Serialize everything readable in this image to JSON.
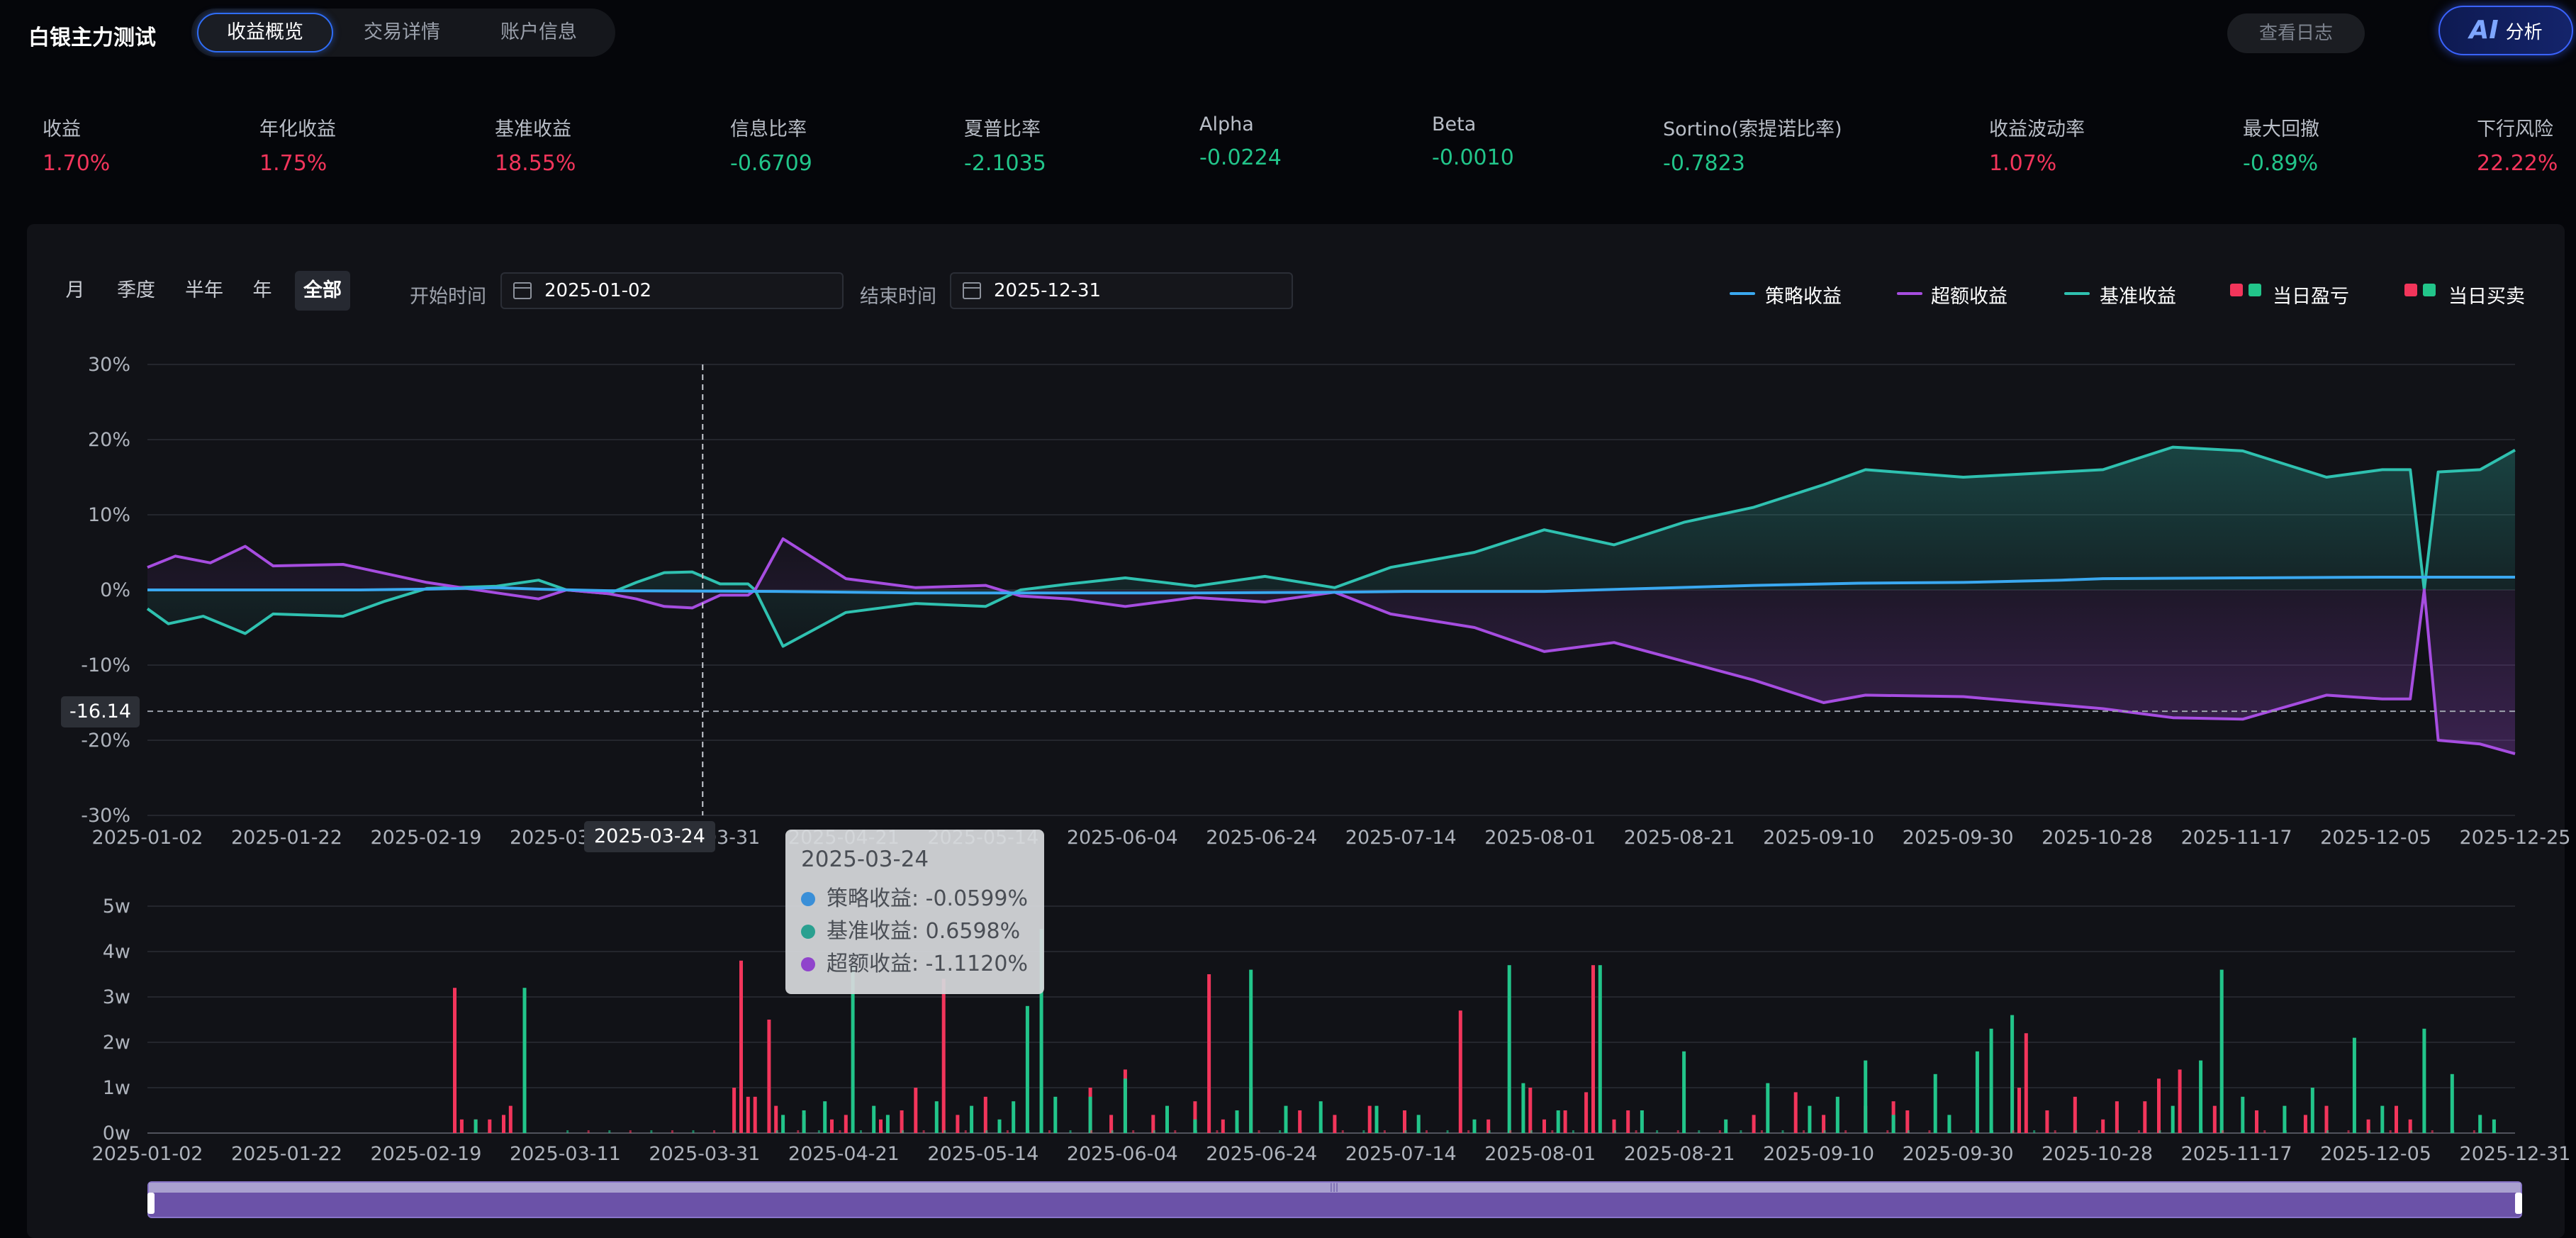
{
  "app": {
    "title": "白银主力测试"
  },
  "tabs": [
    {
      "label": "收益概览",
      "active": true
    },
    {
      "label": "交易详情",
      "active": false
    },
    {
      "label": "账户信息",
      "active": false
    }
  ],
  "header": {
    "log_button": "查看日志",
    "ai_mark": "AI",
    "ai_label": "分析"
  },
  "metrics": [
    {
      "label": "收益",
      "value": "1.70%",
      "tone": "red"
    },
    {
      "label": "年化收益",
      "value": "1.75%",
      "tone": "red"
    },
    {
      "label": "基准收益",
      "value": "18.55%",
      "tone": "red"
    },
    {
      "label": "信息比率",
      "value": "-0.6709",
      "tone": "green"
    },
    {
      "label": "夏普比率",
      "value": "-2.1035",
      "tone": "green"
    },
    {
      "label": "Alpha",
      "value": "-0.0224",
      "tone": "green"
    },
    {
      "label": "Beta",
      "value": "-0.0010",
      "tone": "green"
    },
    {
      "label": "Sortino(索提诺比率)",
      "value": "-0.7823",
      "tone": "green"
    },
    {
      "label": "收益波动率",
      "value": "1.07%",
      "tone": "red"
    },
    {
      "label": "最大回撤",
      "value": "-0.89%",
      "tone": "green"
    },
    {
      "label": "下行风险",
      "value": "22.22%",
      "tone": "red"
    }
  ],
  "filters": {
    "periods": [
      "月",
      "季度",
      "半年",
      "年",
      "全部"
    ],
    "active_period": "全部",
    "start_label": "开始时间",
    "start_value": "2025-01-02",
    "end_label": "结束时间",
    "end_value": "2025-12-31"
  },
  "legend": [
    {
      "label": "策略收益",
      "kind": "line",
      "color": "#3aa8f0"
    },
    {
      "label": "超额收益",
      "kind": "line",
      "color": "#a64de0"
    },
    {
      "label": "基准收益",
      "kind": "line",
      "color": "#2fc1b0"
    },
    {
      "label": "当日盈亏",
      "kind": "squares",
      "colors": [
        "#f2355b",
        "#22c58a"
      ]
    },
    {
      "label": "当日买卖",
      "kind": "squares",
      "colors": [
        "#f2355b",
        "#22c58a"
      ]
    }
  ],
  "crosshair": {
    "date": "2025-03-24",
    "y_value": "-16.14"
  },
  "tooltip": {
    "date": "2025-03-24",
    "rows": [
      {
        "text": "策略收益: -0.0599%",
        "color": "#3a8fd8"
      },
      {
        "text": "基准收益: 0.6598%",
        "color": "#2aa090"
      },
      {
        "text": "超额收益: -1.1120%",
        "color": "#9044cc"
      }
    ]
  },
  "chart_data": [
    {
      "type": "line",
      "y_ticks": [
        "30%",
        "20%",
        "10%",
        "0%",
        "-10%",
        "-20%",
        "-30%"
      ],
      "ylim": [
        -30,
        30
      ],
      "x_ticks": [
        "2025-01-02",
        "2025-01-22",
        "2025-02-19",
        "2025-03-11",
        "2025-03-31",
        "2025-04-21",
        "2025-05-14",
        "2025-06-04",
        "2025-06-24",
        "2025-07-14",
        "2025-08-01",
        "2025-08-21",
        "2025-09-10",
        "2025-09-30",
        "2025-10-28",
        "2025-11-17",
        "2025-12-05",
        "2025-12-25"
      ],
      "series": [
        {
          "name": "策略收益",
          "color": "#3aa8f0",
          "points": [
            [
              0,
              0
            ],
            [
              30,
              0
            ],
            [
              40,
              0.1
            ],
            [
              50,
              0.3
            ],
            [
              56,
              0.1
            ],
            [
              66,
              -0.1
            ],
            [
              90,
              -0.2
            ],
            [
              110,
              -0.4
            ],
            [
              130,
              -0.4
            ],
            [
              150,
              -0.4
            ],
            [
              170,
              -0.3
            ],
            [
              180,
              -0.2
            ],
            [
              200,
              -0.2
            ],
            [
              215,
              0.2
            ],
            [
              230,
              0.6
            ],
            [
              245,
              0.9
            ],
            [
              260,
              1.0
            ],
            [
              274,
              1.3
            ],
            [
              280,
              1.5
            ],
            [
              300,
              1.6
            ],
            [
              320,
              1.7
            ],
            [
              339,
              1.7
            ]
          ]
        },
        {
          "name": "基准收益",
          "color": "#2fc1b0",
          "points": [
            [
              0,
              -2.5
            ],
            [
              3,
              -4.5
            ],
            [
              8,
              -3.5
            ],
            [
              14,
              -5.8
            ],
            [
              18,
              -3.2
            ],
            [
              28,
              -3.5
            ],
            [
              34,
              -1.5
            ],
            [
              40,
              0.2
            ],
            [
              50,
              0.5
            ],
            [
              56,
              1.3
            ],
            [
              60,
              0
            ],
            [
              66,
              -0.5
            ],
            [
              70,
              1
            ],
            [
              74,
              2.3
            ],
            [
              78,
              2.4
            ],
            [
              82,
              0.8
            ],
            [
              86,
              0.8
            ],
            [
              87,
              0
            ],
            [
              91,
              -7.5
            ],
            [
              100,
              -3
            ],
            [
              110,
              -1.8
            ],
            [
              120,
              -2.2
            ],
            [
              125,
              0
            ],
            [
              132,
              0.8
            ],
            [
              140,
              1.6
            ],
            [
              150,
              0.5
            ],
            [
              160,
              1.8
            ],
            [
              170,
              0.3
            ],
            [
              178,
              3
            ],
            [
              190,
              5
            ],
            [
              200,
              8
            ],
            [
              210,
              6
            ],
            [
              220,
              9
            ],
            [
              230,
              11
            ],
            [
              240,
              14
            ],
            [
              246,
              16
            ],
            [
              260,
              15
            ],
            [
              270,
              15.5
            ],
            [
              280,
              16
            ],
            [
              290,
              19
            ],
            [
              300,
              18.5
            ],
            [
              312,
              15
            ],
            [
              320,
              16
            ],
            [
              324,
              16
            ],
            [
              326,
              0
            ],
            [
              328,
              15.7
            ],
            [
              334,
              16
            ],
            [
              339,
              18.6
            ]
          ]
        },
        {
          "name": "超额收益",
          "color": "#a64de0",
          "points": [
            [
              0,
              3
            ],
            [
              4,
              4.5
            ],
            [
              9,
              3.6
            ],
            [
              14,
              5.8
            ],
            [
              18,
              3.2
            ],
            [
              28,
              3.4
            ],
            [
              32,
              2.6
            ],
            [
              40,
              1
            ],
            [
              50,
              -0.4
            ],
            [
              56,
              -1.2
            ],
            [
              60,
              0
            ],
            [
              66,
              -0.5
            ],
            [
              70,
              -1.2
            ],
            [
              74,
              -2.2
            ],
            [
              78,
              -2.4
            ],
            [
              82,
              -0.7
            ],
            [
              86,
              -0.7
            ],
            [
              87,
              0
            ],
            [
              91,
              6.8
            ],
            [
              100,
              1.5
            ],
            [
              110,
              0.3
            ],
            [
              120,
              0.6
            ],
            [
              125,
              -0.8
            ],
            [
              132,
              -1.2
            ],
            [
              140,
              -2.2
            ],
            [
              150,
              -1
            ],
            [
              160,
              -1.6
            ],
            [
              170,
              -0.3
            ],
            [
              178,
              -3.2
            ],
            [
              190,
              -5
            ],
            [
              200,
              -8.2
            ],
            [
              210,
              -7
            ],
            [
              220,
              -9.5
            ],
            [
              230,
              -12
            ],
            [
              240,
              -15
            ],
            [
              246,
              -14
            ],
            [
              260,
              -14.2
            ],
            [
              270,
              -15
            ],
            [
              280,
              -15.8
            ],
            [
              290,
              -17
            ],
            [
              300,
              -17.2
            ],
            [
              312,
              -14
            ],
            [
              320,
              -14.5
            ],
            [
              324,
              -14.5
            ],
            [
              326,
              0
            ],
            [
              328,
              -20
            ],
            [
              334,
              -20.5
            ],
            [
              339,
              -21.8
            ]
          ]
        }
      ],
      "x_range": [
        0,
        339
      ]
    },
    {
      "type": "bar",
      "y_ticks": [
        "5w",
        "4w",
        "3w",
        "2w",
        "1w",
        "0w"
      ],
      "ylim": [
        0,
        5
      ],
      "x_ticks": [
        "2025-01-02",
        "2025-01-22",
        "2025-02-19",
        "2025-03-11",
        "2025-03-31",
        "2025-04-21",
        "2025-05-14",
        "2025-06-04",
        "2025-06-24",
        "2025-07-14",
        "2025-08-01",
        "2025-08-21",
        "2025-09-10",
        "2025-09-30",
        "2025-10-28",
        "2025-11-17",
        "2025-12-05",
        "2025-12-31"
      ],
      "x_range": [
        0,
        339
      ],
      "series": [
        {
          "name": "当日盈亏",
          "color": "#f2355b",
          "bars": [
            [
              44,
              3.2
            ],
            [
              45,
              0.3
            ],
            [
              47,
              0.3
            ],
            [
              49,
              0.3
            ],
            [
              51,
              0.4
            ],
            [
              52,
              0.6
            ],
            [
              84,
              1
            ],
            [
              85,
              3.8
            ],
            [
              86,
              0.8
            ],
            [
              87,
              0.8
            ],
            [
              89,
              2.5
            ],
            [
              90,
              0.6
            ],
            [
              94,
              0.4
            ],
            [
              98,
              0.3
            ],
            [
              100,
              0.4
            ],
            [
              105,
              0.3
            ],
            [
              108,
              0.5
            ],
            [
              110,
              1
            ],
            [
              114,
              3.4
            ],
            [
              116,
              0.4
            ],
            [
              120,
              0.8
            ],
            [
              135,
              1
            ],
            [
              138,
              0.4
            ],
            [
              140,
              1.4
            ],
            [
              144,
              0.4
            ],
            [
              150,
              0.7
            ],
            [
              152,
              3.5
            ],
            [
              154,
              0.3
            ],
            [
              158,
              1
            ],
            [
              165,
              0.5
            ],
            [
              170,
              0.4
            ],
            [
              175,
              0.6
            ],
            [
              180,
              0.5
            ],
            [
              188,
              2.7
            ],
            [
              192,
              0.3
            ],
            [
              198,
              1.0
            ],
            [
              200,
              0.3
            ],
            [
              203,
              0.5
            ],
            [
              206,
              0.9
            ],
            [
              207,
              3.7
            ],
            [
              210,
              0.3
            ],
            [
              212,
              0.5
            ],
            [
              230,
              0.4
            ],
            [
              236,
              0.9
            ],
            [
              240,
              0.4
            ],
            [
              246,
              0.6
            ],
            [
              250,
              0.7
            ],
            [
              252,
              0.5
            ],
            [
              268,
              1.0
            ],
            [
              269,
              2.2
            ],
            [
              272,
              0.5
            ],
            [
              276,
              0.8
            ],
            [
              280,
              0.3
            ],
            [
              282,
              0.7
            ],
            [
              286,
              0.7
            ],
            [
              288,
              1.2
            ],
            [
              291,
              1.4
            ],
            [
              296,
              0.6
            ],
            [
              302,
              0.5
            ],
            [
              309,
              0.4
            ],
            [
              312,
              0.6
            ],
            [
              318,
              0.3
            ],
            [
              322,
              0.6
            ],
            [
              324,
              0.3
            ]
          ]
        },
        {
          "name": "当日买卖",
          "color": "#22c58a",
          "bars": [
            [
              47,
              0.3
            ],
            [
              54,
              3.2
            ],
            [
              91,
              0.4
            ],
            [
              94,
              0.5
            ],
            [
              97,
              0.7
            ],
            [
              101,
              3.7
            ],
            [
              104,
              0.6
            ],
            [
              106,
              0.4
            ],
            [
              113,
              0.7
            ],
            [
              118,
              0.6
            ],
            [
              122,
              0.3
            ],
            [
              124,
              0.7
            ],
            [
              126,
              2.8
            ],
            [
              128,
              4.5
            ],
            [
              130,
              0.8
            ],
            [
              135,
              0.8
            ],
            [
              140,
              1.2
            ],
            [
              146,
              0.6
            ],
            [
              150,
              0.3
            ],
            [
              156,
              0.5
            ],
            [
              158,
              3.6
            ],
            [
              163,
              0.6
            ],
            [
              168,
              0.7
            ],
            [
              176,
              0.6
            ],
            [
              182,
              0.4
            ],
            [
              190,
              0.3
            ],
            [
              195,
              3.7
            ],
            [
              197,
              1.1
            ],
            [
              202,
              0.5
            ],
            [
              208,
              3.7
            ],
            [
              214,
              0.5
            ],
            [
              220,
              1.8
            ],
            [
              226,
              0.3
            ],
            [
              232,
              1.1
            ],
            [
              238,
              0.6
            ],
            [
              242,
              0.8
            ],
            [
              246,
              1.6
            ],
            [
              250,
              0.4
            ],
            [
              256,
              1.3
            ],
            [
              258,
              0.4
            ],
            [
              262,
              1.8
            ],
            [
              264,
              2.3
            ],
            [
              267,
              2.6
            ],
            [
              290,
              0.6
            ],
            [
              294,
              1.6
            ],
            [
              297,
              3.6
            ],
            [
              300,
              0.8
            ],
            [
              306,
              0.6
            ],
            [
              310,
              1.0
            ],
            [
              316,
              2.1
            ],
            [
              320,
              0.6
            ],
            [
              326,
              2.3
            ],
            [
              330,
              1.3
            ],
            [
              334,
              0.4
            ],
            [
              336,
              0.3
            ]
          ]
        }
      ]
    }
  ]
}
